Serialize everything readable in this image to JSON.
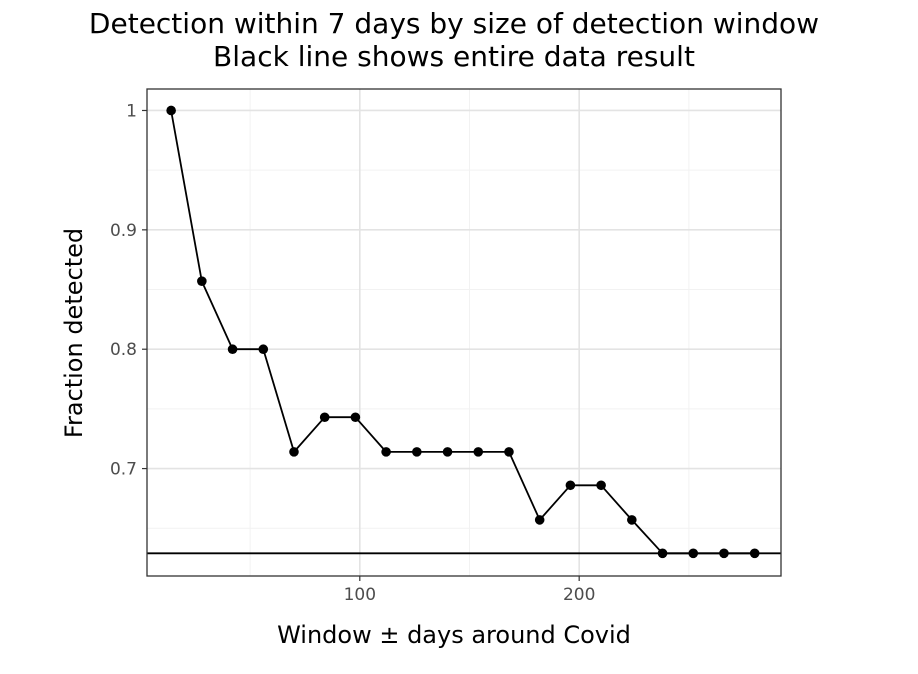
{
  "chart_data": {
    "type": "line",
    "title": "Detection within 7 days by size of detection window",
    "subtitle": "Black line shows entire data result",
    "xlabel": "Window ± days around Covid",
    "ylabel": "Fraction detected",
    "xlim": [
      3,
      292
    ],
    "ylim": [
      0.61,
      1.018
    ],
    "x_ticks": [
      100,
      200
    ],
    "x_minor_ticks": [
      50,
      150,
      250
    ],
    "y_ticks": [
      0.7,
      0.8,
      0.9,
      1
    ],
    "y_tick_labels": [
      "0.7",
      "0.8",
      "0.9",
      "1"
    ],
    "y_minor_ticks": [
      0.65,
      0.75,
      0.85,
      0.95
    ],
    "grid": true,
    "theme": "black-and-white",
    "series": [
      {
        "x": [
          14,
          28,
          42,
          56,
          70,
          84,
          98,
          112,
          126,
          140,
          154,
          168,
          182,
          196,
          210,
          224,
          238,
          252,
          266,
          280
        ],
        "y": [
          1.0,
          0.857,
          0.8,
          0.8,
          0.714,
          0.743,
          0.743,
          0.714,
          0.714,
          0.714,
          0.714,
          0.714,
          0.657,
          0.686,
          0.686,
          0.657,
          0.629,
          0.629,
          0.629,
          0.629
        ],
        "color": "#000000",
        "markers": true
      }
    ],
    "hline": {
      "y": 0.629,
      "color": "#000000"
    }
  }
}
